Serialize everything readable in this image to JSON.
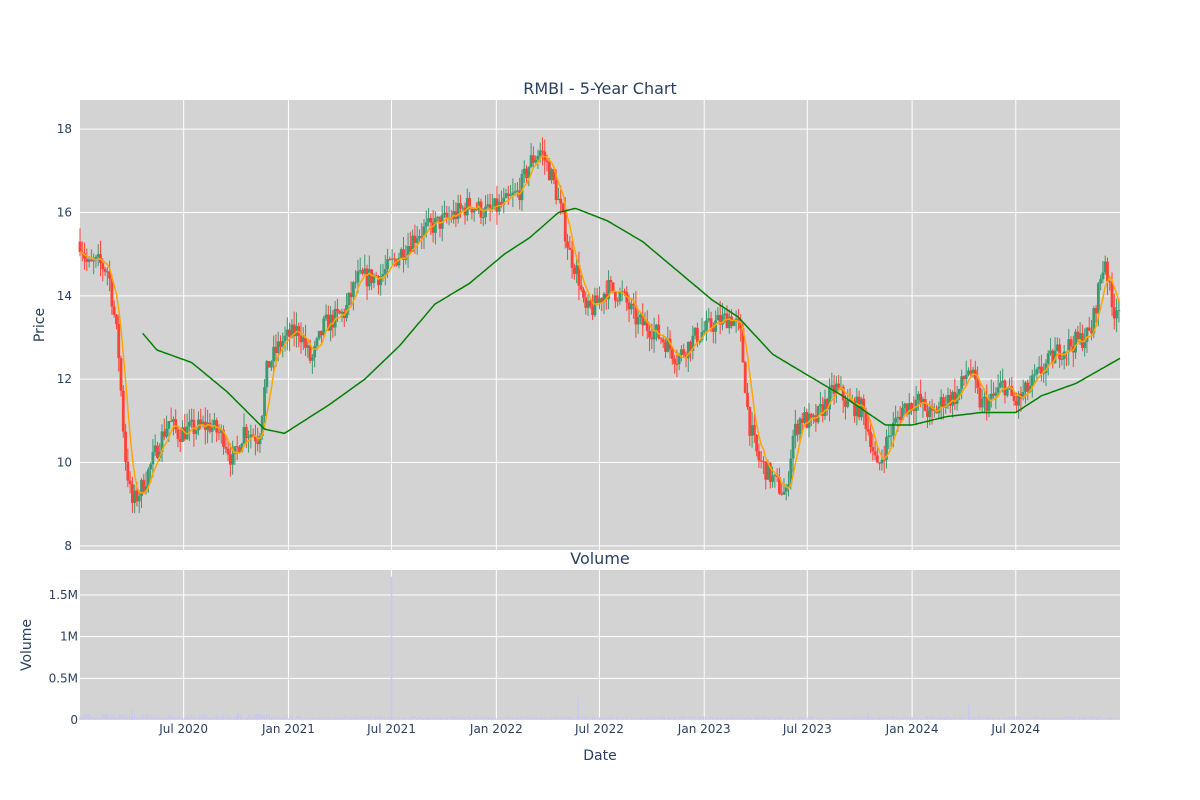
{
  "chart_data": {
    "type": "candlestick",
    "title": "RMBI - 5-Year Chart",
    "colors": {
      "up": "#3d9970",
      "down": "#ff4136",
      "ma_short": "#ffa500",
      "ma_long": "#008000",
      "volume": "#c8c8f0",
      "plot_bg": "#d3d3d3",
      "grid": "#ffffff",
      "text": "#2a3f5f"
    },
    "price_panel": {
      "ylabel": "Price",
      "ylim": [
        7.9,
        18.7
      ],
      "yticks": [
        8,
        10,
        12,
        14,
        16,
        18
      ],
      "ytick_labels": [
        "8",
        "10",
        "12",
        "14",
        "16",
        "18"
      ],
      "grid": true,
      "anchors": [
        [
          "2020-01-02",
          15.3
        ],
        [
          "2020-01-15",
          14.7
        ],
        [
          "2020-02-01",
          14.8
        ],
        [
          "2020-02-20",
          14.6
        ],
        [
          "2020-03-08",
          12.8
        ],
        [
          "2020-03-20",
          10.2
        ],
        [
          "2020-04-01",
          9.0
        ],
        [
          "2020-04-15",
          9.3
        ],
        [
          "2020-05-01",
          9.8
        ],
        [
          "2020-05-20",
          10.5
        ],
        [
          "2020-06-05",
          11.0
        ],
        [
          "2020-06-20",
          10.7
        ],
        [
          "2020-07-15",
          10.8
        ],
        [
          "2020-08-15",
          10.9
        ],
        [
          "2020-09-10",
          10.6
        ],
        [
          "2020-09-25",
          10.0
        ],
        [
          "2020-10-15",
          10.8
        ],
        [
          "2020-11-10",
          10.6
        ],
        [
          "2020-11-25",
          12.3
        ],
        [
          "2020-12-20",
          12.9
        ],
        [
          "2021-01-20",
          13.2
        ],
        [
          "2021-02-10",
          12.4
        ],
        [
          "2021-03-05",
          13.3
        ],
        [
          "2021-04-10",
          13.6
        ],
        [
          "2021-05-01",
          14.4
        ],
        [
          "2021-06-15",
          14.5
        ],
        [
          "2021-07-15",
          15.0
        ],
        [
          "2021-08-15",
          15.5
        ],
        [
          "2021-09-15",
          15.7
        ],
        [
          "2021-10-15",
          15.9
        ],
        [
          "2021-11-15",
          16.2
        ],
        [
          "2021-12-15",
          16.0
        ],
        [
          "2022-01-15",
          16.2
        ],
        [
          "2022-02-10",
          16.5
        ],
        [
          "2022-03-01",
          17.2
        ],
        [
          "2022-03-20",
          17.5
        ],
        [
          "2022-04-10",
          16.8
        ],
        [
          "2022-04-25",
          16.0
        ],
        [
          "2022-05-10",
          15.0
        ],
        [
          "2022-05-25",
          14.5
        ],
        [
          "2022-06-05",
          13.6
        ],
        [
          "2022-06-20",
          13.7
        ],
        [
          "2022-07-15",
          14.2
        ],
        [
          "2022-08-10",
          14.0
        ],
        [
          "2022-09-05",
          13.4
        ],
        [
          "2022-10-01",
          13.2
        ],
        [
          "2022-10-25",
          12.9
        ],
        [
          "2022-11-15",
          12.5
        ],
        [
          "2022-12-15",
          13.0
        ],
        [
          "2023-01-15",
          13.3
        ],
        [
          "2023-02-15",
          13.5
        ],
        [
          "2023-03-05",
          13.2
        ],
        [
          "2023-03-20",
          11.0
        ],
        [
          "2023-04-05",
          10.1
        ],
        [
          "2023-05-01",
          9.6
        ],
        [
          "2023-05-25",
          9.2
        ],
        [
          "2023-06-05",
          10.6
        ],
        [
          "2023-06-20",
          11.1
        ],
        [
          "2023-07-10",
          10.9
        ],
        [
          "2023-08-01",
          11.4
        ],
        [
          "2023-08-20",
          11.8
        ],
        [
          "2023-09-10",
          11.4
        ],
        [
          "2023-10-05",
          11.3
        ],
        [
          "2023-10-20",
          10.6
        ],
        [
          "2023-11-01",
          9.8
        ],
        [
          "2023-11-20",
          10.6
        ],
        [
          "2023-12-15",
          11.3
        ],
        [
          "2024-01-10",
          11.5
        ],
        [
          "2024-02-05",
          11.1
        ],
        [
          "2024-02-25",
          11.5
        ],
        [
          "2024-03-20",
          11.6
        ],
        [
          "2024-04-10",
          12.3
        ],
        [
          "2024-04-30",
          11.4
        ],
        [
          "2024-05-20",
          11.5
        ],
        [
          "2024-06-10",
          11.9
        ],
        [
          "2024-06-30",
          11.4
        ],
        [
          "2024-07-25",
          11.8
        ],
        [
          "2024-08-15",
          12.2
        ],
        [
          "2024-09-15",
          12.7
        ],
        [
          "2024-10-15",
          12.9
        ],
        [
          "2024-11-10",
          13.1
        ],
        [
          "2024-11-25",
          14.3
        ],
        [
          "2024-12-05",
          14.9
        ],
        [
          "2024-12-18",
          13.6
        ],
        [
          "2024-12-31",
          13.9
        ]
      ],
      "ma_long_anchors": [
        [
          "2020-04-20",
          13.1
        ],
        [
          "2020-05-15",
          12.7
        ],
        [
          "2020-07-15",
          12.4
        ],
        [
          "2020-09-15",
          11.7
        ],
        [
          "2020-11-20",
          10.8
        ],
        [
          "2020-12-25",
          10.7
        ],
        [
          "2021-03-15",
          11.4
        ],
        [
          "2021-05-15",
          12.0
        ],
        [
          "2021-07-15",
          12.8
        ],
        [
          "2021-09-15",
          13.8
        ],
        [
          "2021-11-15",
          14.3
        ],
        [
          "2022-01-15",
          15.0
        ],
        [
          "2022-03-01",
          15.4
        ],
        [
          "2022-04-20",
          16.0
        ],
        [
          "2022-05-20",
          16.1
        ],
        [
          "2022-07-15",
          15.8
        ],
        [
          "2022-09-15",
          15.3
        ],
        [
          "2022-11-15",
          14.6
        ],
        [
          "2023-01-15",
          13.9
        ],
        [
          "2023-03-01",
          13.5
        ],
        [
          "2023-05-01",
          12.6
        ],
        [
          "2023-07-01",
          12.1
        ],
        [
          "2023-09-01",
          11.6
        ],
        [
          "2023-11-15",
          10.9
        ],
        [
          "2024-01-01",
          10.9
        ],
        [
          "2024-03-01",
          11.1
        ],
        [
          "2024-05-01",
          11.2
        ],
        [
          "2024-07-01",
          11.2
        ],
        [
          "2024-08-15",
          11.6
        ],
        [
          "2024-10-15",
          11.9
        ],
        [
          "2024-12-31",
          12.5
        ]
      ]
    },
    "volume_panel": {
      "title": "Volume",
      "ylabel": "Volume",
      "xlabel": "Date",
      "ylim": [
        0,
        1800000
      ],
      "yticks": [
        0,
        500000,
        1000000,
        1500000
      ],
      "ytick_labels": [
        "0",
        "0.5M",
        "1M",
        "1.5M"
      ],
      "grid": true,
      "typical_volume": 30000,
      "spikes": [
        [
          "2020-04-01",
          120000
        ],
        [
          "2020-10-05",
          90000
        ],
        [
          "2021-07-01",
          1720000
        ],
        [
          "2022-05-25",
          270000
        ],
        [
          "2023-10-15",
          80000
        ],
        [
          "2024-04-10",
          200000
        ]
      ]
    },
    "x_axis": {
      "range": [
        "2020-01-01",
        "2024-12-31"
      ],
      "ticks": [
        "2020-07-01",
        "2021-01-01",
        "2021-07-01",
        "2022-01-01",
        "2022-07-01",
        "2023-01-01",
        "2023-07-01",
        "2024-01-01",
        "2024-07-01"
      ],
      "tick_labels": [
        "Jul 2020",
        "Jan 2021",
        "Jul 2021",
        "Jan 2022",
        "Jul 2022",
        "Jan 2023",
        "Jul 2023",
        "Jan 2024",
        "Jul 2024"
      ]
    }
  }
}
